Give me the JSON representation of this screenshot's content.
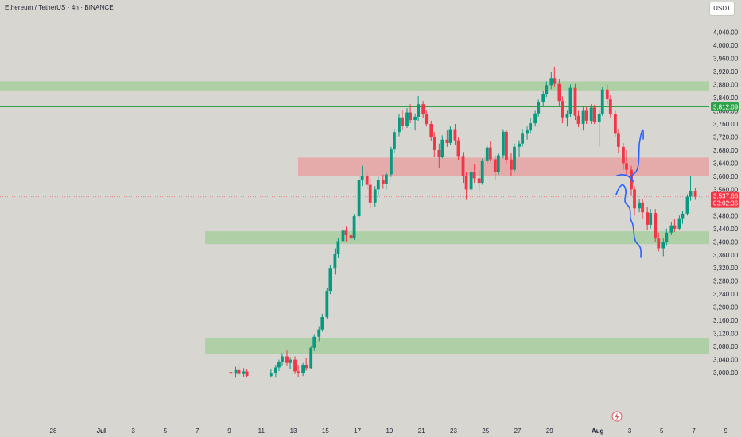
{
  "header": {
    "title": "Ethereum / TetherUS · 4h · BINANCE",
    "currency_button": "USDT"
  },
  "colors": {
    "background": "#d8d6d1",
    "up": "#089981",
    "down": "#f23645",
    "support_zone": "#a8cf9f",
    "resistance_zone": "#e6a3a3",
    "level_line": "#31a24c",
    "drawing": "#2962ff"
  },
  "chart_data": {
    "type": "candlestick",
    "symbol": "Ethereum / TetherUS",
    "interval": "4h",
    "exchange": "BINANCE",
    "y_axis": {
      "ticks": [
        "4,040.00",
        "4,000.00",
        "3,960.00",
        "3,920.00",
        "3,880.00",
        "3,840.00",
        "3,800.00",
        "3,760.00",
        "3,720.00",
        "3,680.00",
        "3,640.00",
        "3,600.00",
        "3,560.00",
        "3,520.00",
        "3,480.00",
        "3,440.00",
        "3,400.00",
        "3,360.00",
        "3,320.00",
        "3,280.00",
        "3,240.00",
        "3,200.00",
        "3,160.00",
        "3,120.00",
        "3,080.00",
        "3,040.00",
        "3,000.00"
      ],
      "range": [
        2985,
        4060
      ]
    },
    "x_axis": {
      "ticks": [
        "28",
        "Jul",
        "3",
        "5",
        "7",
        "9",
        "11",
        "13",
        "15",
        "17",
        "19",
        "21",
        "23",
        "25",
        "27",
        "29",
        "Aug",
        "3",
        "5",
        "7",
        "9"
      ]
    },
    "price_labels": {
      "level": "3,812.09",
      "last_price": "3,537.66",
      "countdown": "03:02:36"
    },
    "zones": [
      {
        "kind": "support",
        "from_date": "Jun 27",
        "to_date": "Aug 9",
        "low": 3862,
        "high": 3890
      },
      {
        "kind": "resistance",
        "from_date": "Jul 17",
        "to_date": "Aug 9",
        "low": 3600,
        "high": 3657
      },
      {
        "kind": "support",
        "from_date": "Jul 10",
        "to_date": "Aug 9",
        "low": 3393,
        "high": 3432
      },
      {
        "kind": "support",
        "from_date": "Jul 10",
        "to_date": "Aug 9",
        "low": 3058,
        "high": 3106
      }
    ],
    "horizontal_lines": [
      {
        "price": 3812.09,
        "style": "solid"
      },
      {
        "price": 3537.66,
        "style": "dotted"
      }
    ],
    "candles": [
      {
        "d": 11.0,
        "o": 3002,
        "h": 3022,
        "l": 2985,
        "c": 2997
      },
      {
        "d": 11.3,
        "o": 2997,
        "h": 3018,
        "l": 2985,
        "c": 3008
      },
      {
        "d": 11.5,
        "o": 3008,
        "h": 3030,
        "l": 2990,
        "c": 2996
      },
      {
        "d": 11.8,
        "o": 2996,
        "h": 3014,
        "l": 2987,
        "c": 3004
      },
      {
        "d": 12.0,
        "o": 3004,
        "h": 3012,
        "l": 2985,
        "c": 2990
      },
      {
        "d": 13.5,
        "o": 2990,
        "h": 3010,
        "l": 2985,
        "c": 3000
      },
      {
        "d": 13.8,
        "o": 3000,
        "h": 3022,
        "l": 2985,
        "c": 3016
      },
      {
        "d": 14.0,
        "o": 3016,
        "h": 3040,
        "l": 3005,
        "c": 3034
      },
      {
        "d": 14.2,
        "o": 3034,
        "h": 3060,
        "l": 3020,
        "c": 3050
      },
      {
        "d": 14.5,
        "o": 3050,
        "h": 3068,
        "l": 3020,
        "c": 3030
      },
      {
        "d": 14.7,
        "o": 3030,
        "h": 3048,
        "l": 3010,
        "c": 3040
      },
      {
        "d": 15.0,
        "o": 3040,
        "h": 3050,
        "l": 2996,
        "c": 3004
      },
      {
        "d": 15.2,
        "o": 3004,
        "h": 3022,
        "l": 2988,
        "c": 3000
      },
      {
        "d": 15.5,
        "o": 3000,
        "h": 3030,
        "l": 2990,
        "c": 3022
      },
      {
        "d": 15.7,
        "o": 3022,
        "h": 3044,
        "l": 3006,
        "c": 3014
      },
      {
        "d": 16.0,
        "o": 3014,
        "h": 3082,
        "l": 3010,
        "c": 3076
      },
      {
        "d": 16.2,
        "o": 3076,
        "h": 3118,
        "l": 3066,
        "c": 3110
      },
      {
        "d": 16.5,
        "o": 3110,
        "h": 3142,
        "l": 3096,
        "c": 3132
      },
      {
        "d": 16.7,
        "o": 3132,
        "h": 3180,
        "l": 3125,
        "c": 3170
      },
      {
        "d": 17.0,
        "o": 3170,
        "h": 3260,
        "l": 3165,
        "c": 3250
      },
      {
        "d": 17.2,
        "o": 3250,
        "h": 3330,
        "l": 3240,
        "c": 3320
      },
      {
        "d": 17.5,
        "o": 3320,
        "h": 3380,
        "l": 3300,
        "c": 3362
      },
      {
        "d": 17.7,
        "o": 3362,
        "h": 3412,
        "l": 3350,
        "c": 3402
      },
      {
        "d": 18.0,
        "o": 3402,
        "h": 3450,
        "l": 3390,
        "c": 3434
      },
      {
        "d": 18.2,
        "o": 3434,
        "h": 3446,
        "l": 3400,
        "c": 3420
      },
      {
        "d": 18.5,
        "o": 3420,
        "h": 3440,
        "l": 3395,
        "c": 3410
      },
      {
        "d": 18.7,
        "o": 3410,
        "h": 3485,
        "l": 3405,
        "c": 3478
      },
      {
        "d": 19.0,
        "o": 3478,
        "h": 3600,
        "l": 3470,
        "c": 3590
      },
      {
        "d": 19.2,
        "o": 3590,
        "h": 3632,
        "l": 3570,
        "c": 3600
      },
      {
        "d": 19.5,
        "o": 3600,
        "h": 3614,
        "l": 3560,
        "c": 3574
      },
      {
        "d": 19.7,
        "o": 3574,
        "h": 3594,
        "l": 3502,
        "c": 3520
      },
      {
        "d": 20.0,
        "o": 3520,
        "h": 3570,
        "l": 3505,
        "c": 3560
      },
      {
        "d": 20.2,
        "o": 3560,
        "h": 3600,
        "l": 3540,
        "c": 3590
      },
      {
        "d": 20.5,
        "o": 3590,
        "h": 3605,
        "l": 3562,
        "c": 3578
      },
      {
        "d": 20.7,
        "o": 3578,
        "h": 3615,
        "l": 3560,
        "c": 3606
      },
      {
        "d": 21.0,
        "o": 3606,
        "h": 3690,
        "l": 3598,
        "c": 3682
      },
      {
        "d": 21.2,
        "o": 3682,
        "h": 3745,
        "l": 3672,
        "c": 3735
      },
      {
        "d": 21.5,
        "o": 3735,
        "h": 3790,
        "l": 3722,
        "c": 3780
      },
      {
        "d": 21.7,
        "o": 3780,
        "h": 3800,
        "l": 3740,
        "c": 3755
      },
      {
        "d": 22.0,
        "o": 3755,
        "h": 3808,
        "l": 3748,
        "c": 3795
      },
      {
        "d": 22.2,
        "o": 3795,
        "h": 3820,
        "l": 3762,
        "c": 3772
      },
      {
        "d": 22.5,
        "o": 3772,
        "h": 3792,
        "l": 3740,
        "c": 3782
      },
      {
        "d": 22.7,
        "o": 3782,
        "h": 3845,
        "l": 3770,
        "c": 3820
      },
      {
        "d": 23.0,
        "o": 3820,
        "h": 3830,
        "l": 3778,
        "c": 3790
      },
      {
        "d": 23.2,
        "o": 3790,
        "h": 3802,
        "l": 3752,
        "c": 3760
      },
      {
        "d": 23.5,
        "o": 3760,
        "h": 3770,
        "l": 3708,
        "c": 3720
      },
      {
        "d": 23.7,
        "o": 3720,
        "h": 3735,
        "l": 3660,
        "c": 3680
      },
      {
        "d": 24.0,
        "o": 3680,
        "h": 3700,
        "l": 3625,
        "c": 3660
      },
      {
        "d": 24.2,
        "o": 3660,
        "h": 3725,
        "l": 3655,
        "c": 3712
      },
      {
        "d": 24.5,
        "o": 3712,
        "h": 3740,
        "l": 3690,
        "c": 3702
      },
      {
        "d": 24.7,
        "o": 3702,
        "h": 3752,
        "l": 3696,
        "c": 3744
      },
      {
        "d": 25.0,
        "o": 3744,
        "h": 3760,
        "l": 3695,
        "c": 3710
      },
      {
        "d": 25.2,
        "o": 3710,
        "h": 3718,
        "l": 3650,
        "c": 3662
      },
      {
        "d": 25.5,
        "o": 3662,
        "h": 3674,
        "l": 3580,
        "c": 3600
      },
      {
        "d": 25.7,
        "o": 3600,
        "h": 3612,
        "l": 3528,
        "c": 3560
      },
      {
        "d": 26.0,
        "o": 3560,
        "h": 3626,
        "l": 3555,
        "c": 3612
      },
      {
        "d": 26.2,
        "o": 3612,
        "h": 3638,
        "l": 3580,
        "c": 3594
      },
      {
        "d": 26.5,
        "o": 3594,
        "h": 3620,
        "l": 3555,
        "c": 3580
      },
      {
        "d": 26.7,
        "o": 3580,
        "h": 3654,
        "l": 3574,
        "c": 3646
      },
      {
        "d": 27.0,
        "o": 3646,
        "h": 3695,
        "l": 3640,
        "c": 3688
      },
      {
        "d": 27.2,
        "o": 3688,
        "h": 3708,
        "l": 3645,
        "c": 3652
      },
      {
        "d": 27.5,
        "o": 3652,
        "h": 3664,
        "l": 3590,
        "c": 3612
      },
      {
        "d": 27.7,
        "o": 3612,
        "h": 3672,
        "l": 3605,
        "c": 3664
      },
      {
        "d": 28.0,
        "o": 3664,
        "h": 3744,
        "l": 3655,
        "c": 3736
      },
      {
        "d": 28.2,
        "o": 3736,
        "h": 3742,
        "l": 3640,
        "c": 3650
      },
      {
        "d": 28.5,
        "o": 3650,
        "h": 3672,
        "l": 3600,
        "c": 3620
      },
      {
        "d": 28.7,
        "o": 3620,
        "h": 3700,
        "l": 3612,
        "c": 3690
      },
      {
        "d": 29.0,
        "o": 3690,
        "h": 3710,
        "l": 3660,
        "c": 3700
      },
      {
        "d": 29.2,
        "o": 3700,
        "h": 3745,
        "l": 3690,
        "c": 3730
      },
      {
        "d": 29.5,
        "o": 3730,
        "h": 3752,
        "l": 3712,
        "c": 3740
      },
      {
        "d": 29.7,
        "o": 3740,
        "h": 3778,
        "l": 3730,
        "c": 3762
      },
      {
        "d": 30.0,
        "o": 3762,
        "h": 3800,
        "l": 3752,
        "c": 3792
      },
      {
        "d": 30.2,
        "o": 3792,
        "h": 3834,
        "l": 3782,
        "c": 3826
      },
      {
        "d": 30.5,
        "o": 3826,
        "h": 3860,
        "l": 3812,
        "c": 3852
      },
      {
        "d": 30.7,
        "o": 3852,
        "h": 3890,
        "l": 3842,
        "c": 3878
      },
      {
        "d": 31.0,
        "o": 3878,
        "h": 3920,
        "l": 3866,
        "c": 3900
      },
      {
        "d": 31.2,
        "o": 3900,
        "h": 3935,
        "l": 3872,
        "c": 3882
      },
      {
        "d": 31.5,
        "o": 3882,
        "h": 3898,
        "l": 3812,
        "c": 3830
      },
      {
        "d": 31.7,
        "o": 3830,
        "h": 3844,
        "l": 3762,
        "c": 3780
      },
      {
        "d": 32.0,
        "o": 3780,
        "h": 3800,
        "l": 3752,
        "c": 3790
      },
      {
        "d": 32.2,
        "o": 3790,
        "h": 3880,
        "l": 3782,
        "c": 3870
      },
      {
        "d": 32.5,
        "o": 3870,
        "h": 3882,
        "l": 3772,
        "c": 3785
      },
      {
        "d": 32.7,
        "o": 3785,
        "h": 3800,
        "l": 3750,
        "c": 3760
      },
      {
        "d": 33.0,
        "o": 3760,
        "h": 3812,
        "l": 3740,
        "c": 3800
      },
      {
        "d": 33.2,
        "o": 3800,
        "h": 3812,
        "l": 3760,
        "c": 3770
      },
      {
        "d": 33.5,
        "o": 3770,
        "h": 3820,
        "l": 3760,
        "c": 3810
      },
      {
        "d": 33.7,
        "o": 3810,
        "h": 3818,
        "l": 3760,
        "c": 3765
      },
      {
        "d": 34.0,
        "o": 3765,
        "h": 3800,
        "l": 3690,
        "c": 3790
      },
      {
        "d": 34.2,
        "o": 3790,
        "h": 3872,
        "l": 3784,
        "c": 3865
      },
      {
        "d": 34.5,
        "o": 3865,
        "h": 3880,
        "l": 3820,
        "c": 3835
      },
      {
        "d": 34.7,
        "o": 3835,
        "h": 3850,
        "l": 3780,
        "c": 3790
      },
      {
        "d": 35.0,
        "o": 3790,
        "h": 3800,
        "l": 3720,
        "c": 3730
      },
      {
        "d": 35.2,
        "o": 3730,
        "h": 3745,
        "l": 3670,
        "c": 3690
      },
      {
        "d": 35.5,
        "o": 3690,
        "h": 3702,
        "l": 3620,
        "c": 3640
      },
      {
        "d": 35.7,
        "o": 3640,
        "h": 3680,
        "l": 3600,
        "c": 3620
      },
      {
        "d": 36.0,
        "o": 3620,
        "h": 3632,
        "l": 3540,
        "c": 3560
      },
      {
        "d": 36.2,
        "o": 3560,
        "h": 3570,
        "l": 3480,
        "c": 3502
      },
      {
        "d": 36.5,
        "o": 3502,
        "h": 3530,
        "l": 3490,
        "c": 3520
      },
      {
        "d": 36.7,
        "o": 3520,
        "h": 3530,
        "l": 3470,
        "c": 3490
      },
      {
        "d": 37.0,
        "o": 3490,
        "h": 3505,
        "l": 3435,
        "c": 3452
      },
      {
        "d": 37.2,
        "o": 3452,
        "h": 3500,
        "l": 3440,
        "c": 3488
      },
      {
        "d": 37.5,
        "o": 3488,
        "h": 3500,
        "l": 3400,
        "c": 3410
      },
      {
        "d": 37.7,
        "o": 3410,
        "h": 3428,
        "l": 3370,
        "c": 3380
      },
      {
        "d": 38.0,
        "o": 3380,
        "h": 3410,
        "l": 3356,
        "c": 3400
      },
      {
        "d": 38.2,
        "o": 3400,
        "h": 3440,
        "l": 3390,
        "c": 3428
      },
      {
        "d": 38.5,
        "o": 3428,
        "h": 3460,
        "l": 3420,
        "c": 3450
      },
      {
        "d": 38.7,
        "o": 3450,
        "h": 3470,
        "l": 3430,
        "c": 3440
      },
      {
        "d": 39.0,
        "o": 3440,
        "h": 3480,
        "l": 3435,
        "c": 3472
      },
      {
        "d": 39.2,
        "o": 3472,
        "h": 3495,
        "l": 3455,
        "c": 3486
      },
      {
        "d": 39.5,
        "o": 3486,
        "h": 3545,
        "l": 3480,
        "c": 3538
      },
      {
        "d": 39.7,
        "o": 3538,
        "h": 3600,
        "l": 3525,
        "c": 3555
      },
      {
        "d": 40.0,
        "o": 3555,
        "h": 3565,
        "l": 3528,
        "c": 3538
      }
    ]
  }
}
